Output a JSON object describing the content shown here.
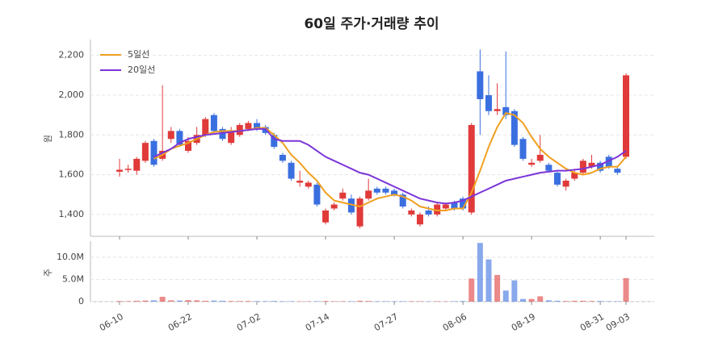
{
  "chart_data": [
    {
      "type": "candlestick",
      "title": "60일 주가·거래량 추이",
      "y_label": "원",
      "categories": [
        "06-10",
        null,
        null,
        null,
        null,
        null,
        null,
        null,
        "06-22",
        null,
        null,
        null,
        null,
        null,
        null,
        null,
        "07-02",
        null,
        null,
        null,
        null,
        null,
        null,
        null,
        "07-14",
        null,
        null,
        null,
        null,
        null,
        null,
        null,
        "07-27",
        null,
        null,
        null,
        null,
        null,
        null,
        null,
        "08-06",
        null,
        null,
        null,
        null,
        null,
        null,
        null,
        "08-19",
        null,
        null,
        null,
        null,
        null,
        null,
        null,
        "08-31",
        null,
        null,
        "09-03"
      ],
      "open": [
        1615,
        1625,
        1620,
        1670,
        1770,
        1680,
        1780,
        1820,
        1720,
        1760,
        1800,
        1900,
        1830,
        1760,
        1800,
        1830,
        1860,
        1840,
        1800,
        1700,
        1660,
        1560,
        1540,
        1550,
        1360,
        1430,
        1480,
        1480,
        1340,
        1480,
        1530,
        1530,
        1520,
        1500,
        1400,
        1350,
        1420,
        1400,
        1430,
        1460,
        1480,
        1410,
        2120,
        2000,
        1920,
        1940,
        1920,
        1780,
        1650,
        1670,
        1650,
        1610,
        1540,
        1580,
        1610,
        1640,
        1660,
        1690,
        1630,
        1690
      ],
      "close": [
        1625,
        1630,
        1680,
        1760,
        1650,
        1720,
        1820,
        1750,
        1770,
        1800,
        1880,
        1820,
        1780,
        1820,
        1850,
        1860,
        1830,
        1810,
        1740,
        1670,
        1580,
        1570,
        1560,
        1450,
        1420,
        1450,
        1510,
        1410,
        1480,
        1520,
        1510,
        1510,
        1500,
        1440,
        1420,
        1400,
        1400,
        1450,
        1450,
        1430,
        1430,
        1850,
        1980,
        1920,
        1930,
        1900,
        1750,
        1680,
        1660,
        1700,
        1620,
        1550,
        1570,
        1610,
        1670,
        1660,
        1620,
        1640,
        1610,
        2100
      ],
      "high": [
        1680,
        1650,
        1690,
        1770,
        1780,
        2050,
        1840,
        1830,
        1790,
        1840,
        1890,
        1910,
        1840,
        1840,
        1860,
        1870,
        1880,
        1850,
        1810,
        1710,
        1670,
        1620,
        1570,
        1560,
        1430,
        1460,
        1530,
        1500,
        1490,
        1580,
        1540,
        1540,
        1530,
        1510,
        1430,
        1410,
        1440,
        1460,
        1460,
        1470,
        1490,
        1860,
        2230,
        2100,
        2060,
        2220,
        1930,
        1790,
        1680,
        1800,
        1660,
        1620,
        1580,
        1630,
        1680,
        1700,
        1670,
        1700,
        1640,
        2110
      ],
      "low": [
        1590,
        1610,
        1600,
        1660,
        1640,
        1670,
        1760,
        1740,
        1710,
        1750,
        1790,
        1810,
        1770,
        1750,
        1790,
        1820,
        1820,
        1800,
        1730,
        1660,
        1570,
        1540,
        1530,
        1440,
        1350,
        1420,
        1470,
        1400,
        1330,
        1470,
        1500,
        1500,
        1490,
        1430,
        1390,
        1340,
        1390,
        1390,
        1420,
        1420,
        1420,
        1400,
        1800,
        1900,
        1900,
        1880,
        1740,
        1670,
        1640,
        1660,
        1610,
        1540,
        1520,
        1570,
        1600,
        1630,
        1610,
        1630,
        1600,
        1680
      ],
      "up_color": "#e03a3a",
      "down_color": "#3a6fe0",
      "series": [
        {
          "name": "5일선",
          "color": "#f0a020",
          "values": [
            null,
            null,
            null,
            null,
            1680,
            1700,
            1730,
            1745,
            1760,
            1780,
            1800,
            1815,
            1820,
            1820,
            1820,
            1825,
            1835,
            1835,
            1800,
            1760,
            1700,
            1660,
            1610,
            1570,
            1510,
            1470,
            1460,
            1450,
            1440,
            1460,
            1480,
            1490,
            1500,
            1490,
            1470,
            1440,
            1430,
            1420,
            1420,
            1430,
            1430,
            1510,
            1620,
            1740,
            1840,
            1910,
            1900,
            1860,
            1790,
            1730,
            1690,
            1660,
            1630,
            1610,
            1600,
            1610,
            1630,
            1640,
            1640,
            1690
          ]
        },
        {
          "name": "20일선",
          "color": "#7b35d8",
          "values": [
            null,
            null,
            null,
            null,
            1690,
            1710,
            1730,
            1760,
            1780,
            1790,
            1800,
            1805,
            1810,
            1815,
            1820,
            1825,
            1830,
            1830,
            1780,
            1770,
            1770,
            1770,
            1750,
            1720,
            1690,
            1670,
            1650,
            1630,
            1610,
            1600,
            1580,
            1560,
            1540,
            1520,
            1500,
            1480,
            1470,
            1460,
            1455,
            1460,
            1470,
            1490,
            1510,
            1530,
            1550,
            1570,
            1580,
            1590,
            1600,
            1610,
            1615,
            1620,
            1620,
            1625,
            1630,
            1640,
            1650,
            1670,
            1690,
            1720
          ]
        }
      ],
      "ylim": [
        1290,
        2280
      ],
      "yticks": [
        {
          "value": 1400,
          "label": "1,400"
        },
        {
          "value": 1600,
          "label": "1,600"
        },
        {
          "value": 1800,
          "label": "1,800"
        },
        {
          "value": 2000,
          "label": "2,000"
        },
        {
          "value": 2200,
          "label": "2,200"
        }
      ],
      "legend": "upper left",
      "grid": true
    },
    {
      "type": "bar",
      "y_label": "주",
      "values": [
        150000,
        120000,
        200000,
        250000,
        300000,
        1100000,
        300000,
        250000,
        350000,
        300000,
        200000,
        250000,
        200000,
        150000,
        150000,
        150000,
        120000,
        120000,
        150000,
        100000,
        100000,
        80000,
        80000,
        100000,
        150000,
        100000,
        100000,
        100000,
        200000,
        150000,
        100000,
        100000,
        100000,
        100000,
        100000,
        100000,
        80000,
        100000,
        80000,
        100000,
        150000,
        5200000,
        13200000,
        9500000,
        6000000,
        2500000,
        4800000,
        600000,
        600000,
        1200000,
        300000,
        200000,
        150000,
        200000,
        200000,
        150000,
        150000,
        100000,
        100000,
        5300000
      ],
      "ylim": [
        0,
        13600000
      ],
      "yticks": [
        {
          "value": 0,
          "label": "0"
        },
        {
          "value": 5000000,
          "label": "5.0M"
        },
        {
          "value": 10000000,
          "label": "10.0M"
        }
      ],
      "grid": true
    }
  ]
}
